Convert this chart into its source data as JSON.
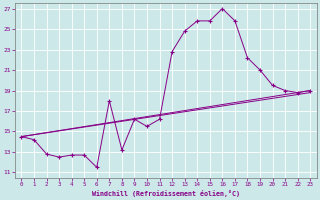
{
  "xlabel": "Windchill (Refroidissement éolien,°C)",
  "bg_color": "#cce8e8",
  "line_color": "#880088",
  "grid_color": "#ffffff",
  "xlim": [
    -0.5,
    23.5
  ],
  "ylim": [
    10.5,
    27.5
  ],
  "xticks": [
    0,
    1,
    2,
    3,
    4,
    5,
    6,
    7,
    8,
    9,
    10,
    11,
    12,
    13,
    14,
    15,
    16,
    17,
    18,
    19,
    20,
    21,
    22,
    23
  ],
  "yticks": [
    11,
    13,
    15,
    17,
    19,
    21,
    23,
    25,
    27
  ],
  "series": [
    [
      0,
      14.5
    ],
    [
      1,
      14.2
    ],
    [
      2,
      12.8
    ],
    [
      3,
      12.5
    ],
    [
      4,
      12.7
    ],
    [
      5,
      12.7
    ],
    [
      6,
      11.5
    ],
    [
      7,
      18.0
    ],
    [
      8,
      13.2
    ],
    [
      9,
      16.2
    ],
    [
      10,
      15.5
    ],
    [
      11,
      16.2
    ],
    [
      12,
      22.8
    ],
    [
      13,
      24.8
    ],
    [
      14,
      25.8
    ],
    [
      15,
      25.8
    ],
    [
      16,
      27.0
    ],
    [
      17,
      25.8
    ],
    [
      18,
      22.2
    ],
    [
      19,
      21.0
    ],
    [
      20,
      19.5
    ],
    [
      21,
      19.0
    ],
    [
      22,
      18.8
    ],
    [
      23,
      19.0
    ]
  ],
  "line2_x": [
    0,
    23
  ],
  "line2_y": [
    14.5,
    19.0
  ],
  "line3_x": [
    0,
    23
  ],
  "line3_y": [
    14.5,
    18.8
  ],
  "marker": "+"
}
